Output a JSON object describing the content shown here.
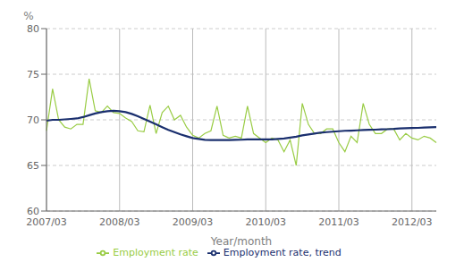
{
  "chart_data": {
    "type": "line",
    "xlabel": "Year/month",
    "ylabel": "%",
    "categories": [
      "2007/03",
      null,
      null,
      null,
      null,
      null,
      null,
      null,
      null,
      null,
      null,
      null,
      "2008/03",
      null,
      null,
      null,
      null,
      null,
      null,
      null,
      null,
      null,
      null,
      null,
      "2009/03",
      null,
      null,
      null,
      null,
      null,
      null,
      null,
      null,
      null,
      null,
      null,
      "2010/03",
      null,
      null,
      null,
      null,
      null,
      null,
      null,
      null,
      null,
      null,
      null,
      "2011/03",
      null,
      null,
      null,
      null,
      null,
      null,
      null,
      null,
      null,
      null,
      null,
      "2012/03",
      null,
      null,
      null,
      null
    ],
    "series": [
      {
        "name": "Employment rate",
        "color": "#99cc44",
        "values": [
          68.8,
          73.4,
          70.0,
          69.2,
          69.0,
          69.5,
          69.5,
          74.5,
          71.0,
          70.8,
          71.5,
          70.8,
          70.7,
          70.2,
          69.8,
          68.8,
          68.7,
          71.6,
          68.5,
          70.8,
          71.5,
          70.0,
          70.5,
          69.2,
          68.3,
          68.0,
          68.5,
          68.8,
          71.5,
          68.3,
          68.0,
          68.2,
          68.0,
          71.5,
          68.5,
          68.0,
          67.5,
          68.0,
          67.8,
          66.5,
          67.8,
          65.0,
          71.8,
          69.5,
          68.5,
          68.5,
          69.0,
          69.0,
          67.5,
          66.5,
          68.2,
          67.5,
          71.8,
          69.5,
          68.5,
          68.5,
          69.0,
          69.0,
          67.8,
          68.5,
          68.0,
          67.8,
          68.2,
          68.0,
          67.5
        ]
      },
      {
        "name": "Employment rate, trend",
        "color": "#1a2f6e",
        "values": [
          69.9,
          70.0,
          70.0,
          70.05,
          70.1,
          70.15,
          70.3,
          70.5,
          70.7,
          70.85,
          70.95,
          71.0,
          70.95,
          70.85,
          70.65,
          70.4,
          70.1,
          69.8,
          69.5,
          69.2,
          68.9,
          68.65,
          68.4,
          68.2,
          68.0,
          67.9,
          67.8,
          67.78,
          67.78,
          67.78,
          67.78,
          67.8,
          67.82,
          67.85,
          67.85,
          67.85,
          67.85,
          67.85,
          67.9,
          67.95,
          68.05,
          68.15,
          68.3,
          68.4,
          68.5,
          68.6,
          68.65,
          68.7,
          68.75,
          68.8,
          68.82,
          68.85,
          68.88,
          68.9,
          68.92,
          68.95,
          68.97,
          69.0,
          69.05,
          69.08,
          69.1,
          69.12,
          69.15,
          69.17,
          69.2
        ]
      }
    ],
    "ylim": [
      60,
      80
    ],
    "yticks": [
      60,
      65,
      70,
      75,
      80
    ],
    "grid": true,
    "legend": "bottom"
  }
}
